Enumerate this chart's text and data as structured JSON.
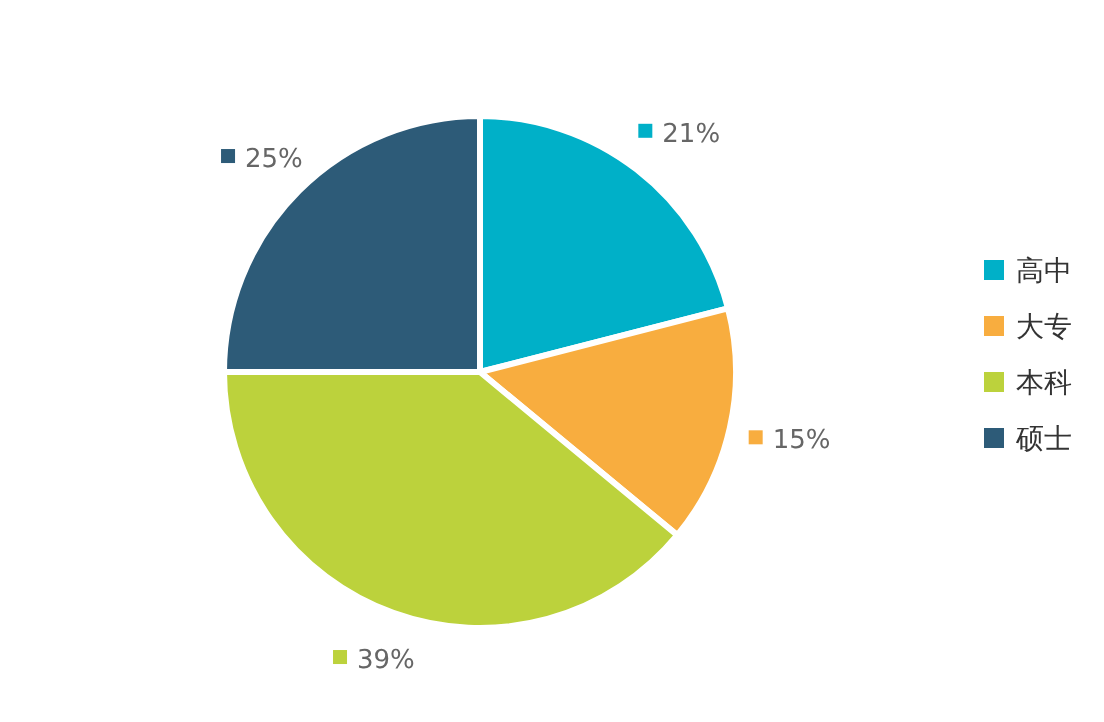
{
  "chart_data": {
    "type": "pie",
    "categories": [
      "高中",
      "大专",
      "本科",
      "硕士"
    ],
    "values": [
      21,
      15,
      39,
      25
    ],
    "colors": [
      "#00b0c8",
      "#f8ad3f",
      "#bcd23c",
      "#2d5b78"
    ],
    "value_labels": [
      "21%",
      "15%",
      "39%",
      "25%"
    ],
    "legend": "right"
  }
}
